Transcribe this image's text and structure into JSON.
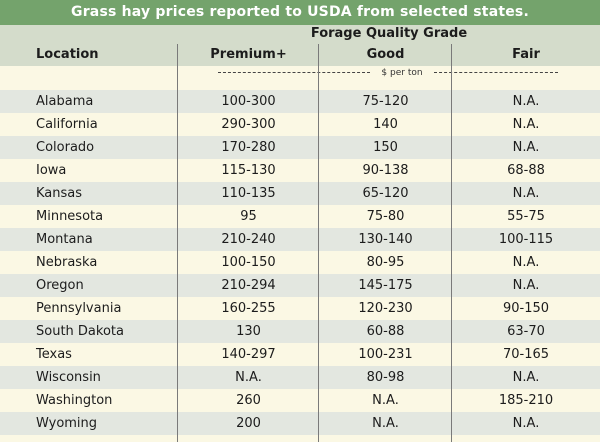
{
  "title": "Grass hay prices reported to USDA from selected states.",
  "header": {
    "group_label": "Forage Quality Grade",
    "columns": [
      "Location",
      "Premium+",
      "Good",
      "Fair"
    ],
    "units": "$ per ton"
  },
  "rows": [
    {
      "location": "Alabama",
      "premium": "100-300",
      "good": "75-120",
      "fair": "N.A."
    },
    {
      "location": "California",
      "premium": "290-300",
      "good": "140",
      "fair": "N.A."
    },
    {
      "location": "Colorado",
      "premium": "170-280",
      "good": "150",
      "fair": "N.A."
    },
    {
      "location": "Iowa",
      "premium": "115-130",
      "good": "90-138",
      "fair": "68-88"
    },
    {
      "location": "Kansas",
      "premium": "110-135",
      "good": "65-120",
      "fair": "N.A."
    },
    {
      "location": "Minnesota",
      "premium": "95",
      "good": "75-80",
      "fair": "55-75"
    },
    {
      "location": "Montana",
      "premium": "210-240",
      "good": "130-140",
      "fair": "100-115"
    },
    {
      "location": "Nebraska",
      "premium": "100-150",
      "good": "80-95",
      "fair": "N.A."
    },
    {
      "location": "Oregon",
      "premium": "210-294",
      "good": "145-175",
      "fair": "N.A."
    },
    {
      "location": "Pennsylvania",
      "premium": "160-255",
      "good": "120-230",
      "fair": "90-150"
    },
    {
      "location": "South Dakota",
      "premium": "130",
      "good": "60-88",
      "fair": "63-70"
    },
    {
      "location": "Texas",
      "premium": "140-297",
      "good": "100-231",
      "fair": "70-165"
    },
    {
      "location": "Wisconsin",
      "premium": "N.A.",
      "good": "80-98",
      "fair": "N.A."
    },
    {
      "location": "Washington",
      "premium": "260",
      "good": "N.A.",
      "fair": "185-210"
    },
    {
      "location": "Wyoming",
      "premium": "200",
      "good": "N.A.",
      "fair": "N.A."
    }
  ],
  "colors": {
    "title_bar": "#74a36c",
    "header_bg": "#d4dccb",
    "row_shade": "#e3e7e0",
    "row_plain": "#fbf8e4"
  }
}
